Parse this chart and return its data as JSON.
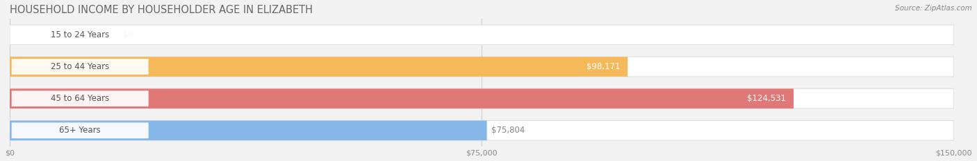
{
  "title": "HOUSEHOLD INCOME BY HOUSEHOLDER AGE IN ELIZABETH",
  "source": "Source: ZipAtlas.com",
  "categories": [
    "15 to 24 Years",
    "25 to 44 Years",
    "45 to 64 Years",
    "65+ Years"
  ],
  "values": [
    0,
    98171,
    124531,
    75804
  ],
  "bar_colors": [
    "#f4a0b8",
    "#f5b95a",
    "#e07878",
    "#85b8e8"
  ],
  "xlim": [
    0,
    150000
  ],
  "xticks": [
    0,
    75000,
    150000
  ],
  "xtick_labels": [
    "$0",
    "$75,000",
    "$150,000"
  ],
  "bg_color": "#f2f2f2",
  "bar_bg_color": "#ffffff",
  "bar_bg_edge_color": "#e0e0e0",
  "label_fontsize": 8.5,
  "title_fontsize": 10.5,
  "value_label_color": "#ffffff",
  "value_label_color_dark": "#888888",
  "bar_height": 0.62,
  "fig_width": 14.06,
  "fig_height": 2.33,
  "bar_rounding": 5000
}
